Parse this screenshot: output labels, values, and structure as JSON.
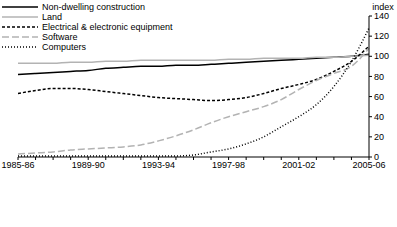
{
  "chart_data": {
    "type": "line",
    "y_label": "index",
    "categories": [
      "1985-86",
      null,
      null,
      null,
      "1989-90",
      null,
      null,
      null,
      "1993-94",
      null,
      null,
      null,
      "1997-98",
      null,
      null,
      null,
      "2001-02",
      null,
      null,
      null,
      "2005-06"
    ],
    "ylim": [
      0,
      140
    ],
    "yticks": [
      0,
      20,
      40,
      60,
      80,
      100,
      120,
      140
    ],
    "grid": false,
    "legend": "top-left",
    "series": [
      {
        "name": "Non-dwelling construction",
        "color": "#000000",
        "line_style": "solid",
        "values": [
          82,
          83,
          84,
          85,
          86,
          88,
          89,
          90,
          90,
          91,
          91,
          92,
          93,
          94,
          95,
          96,
          97,
          98,
          99,
          100,
          102
        ]
      },
      {
        "name": "Land",
        "color": "#b3b3b3",
        "line_style": "solid",
        "values": [
          93,
          93,
          93,
          94,
          94,
          95,
          95,
          96,
          96,
          96,
          96,
          96,
          97,
          97,
          98,
          98,
          98,
          99,
          99,
          100,
          101
        ]
      },
      {
        "name": "Electrical & electronic equipment",
        "color": "#000000",
        "line_style": "dashed",
        "values": [
          63,
          66,
          68,
          68,
          67,
          65,
          63,
          61,
          59,
          58,
          57,
          56,
          57,
          59,
          63,
          68,
          72,
          77,
          85,
          95,
          110
        ]
      },
      {
        "name": "Software",
        "color": "#b3b3b3",
        "line_style": "longdash",
        "values": [
          3,
          4,
          5,
          7,
          8,
          9,
          10,
          12,
          16,
          21,
          27,
          34,
          40,
          45,
          50,
          57,
          67,
          76,
          83,
          90,
          108
        ]
      },
      {
        "name": "Computers",
        "color": "#000000",
        "line_style": "dotted",
        "values": [
          1,
          1,
          1,
          1,
          1,
          1,
          1,
          1,
          1,
          1,
          2,
          5,
          8,
          13,
          20,
          30,
          40,
          52,
          70,
          95,
          128
        ]
      }
    ]
  }
}
